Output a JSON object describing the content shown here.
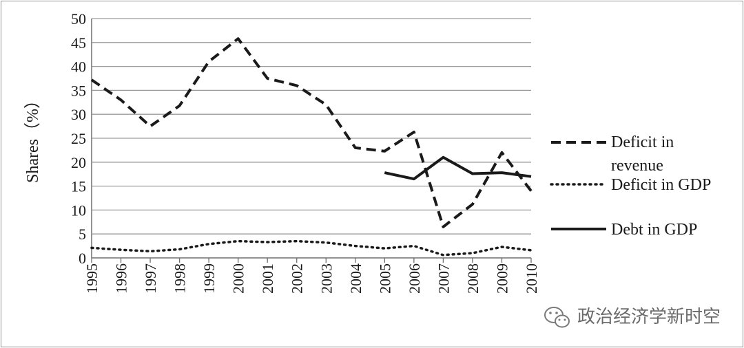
{
  "chart_data": {
    "type": "line",
    "title": "",
    "xlabel": "",
    "ylabel": "Shares（%）",
    "ylim": [
      0,
      50
    ],
    "y_ticks": [
      0,
      5,
      10,
      15,
      20,
      25,
      30,
      35,
      40,
      45,
      50
    ],
    "categories": [
      "1995",
      "1996",
      "1997",
      "1998",
      "1999",
      "2000",
      "2001",
      "2002",
      "2003",
      "2004",
      "2005",
      "2006",
      "2007",
      "2008",
      "2009",
      "2010"
    ],
    "grid": "horizontal",
    "legend_position": "right",
    "series": [
      {
        "name": "Deficit in revenue",
        "style": "dashed",
        "values": [
          37.2,
          33.0,
          27.5,
          31.8,
          41.0,
          45.8,
          37.5,
          36.0,
          32.0,
          23.0,
          22.3,
          26.3,
          6.5,
          11.2,
          22.0,
          14.0
        ]
      },
      {
        "name": "Deficit in GDP",
        "style": "dotted",
        "values": [
          2.1,
          1.7,
          1.4,
          1.8,
          2.9,
          3.5,
          3.3,
          3.5,
          3.2,
          2.5,
          2.0,
          2.5,
          0.6,
          1.0,
          2.3,
          1.6
        ]
      },
      {
        "name": "Debt in GDP",
        "style": "solid",
        "values": [
          null,
          null,
          null,
          null,
          null,
          null,
          null,
          null,
          null,
          null,
          17.8,
          16.5,
          21.0,
          17.6,
          17.8,
          17.0
        ]
      }
    ],
    "legend": {
      "deficit_revenue_line1": "Deficit in",
      "deficit_revenue_line2": "revenue",
      "deficit_gdp": "Deficit in GDP",
      "debt_gdp": "Debt in GDP"
    }
  },
  "watermark": {
    "text": "政治经济学新时空",
    "icon": "wechat-icon"
  }
}
